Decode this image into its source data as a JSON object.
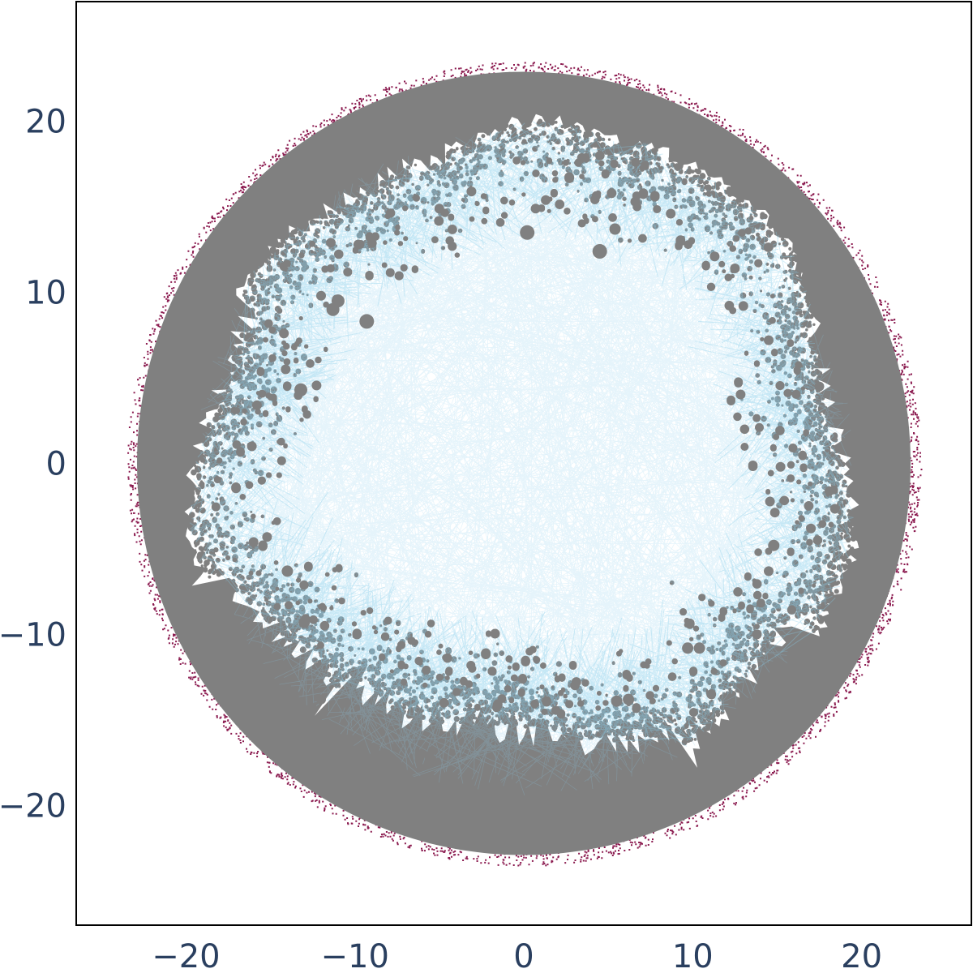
{
  "chart_data": {
    "type": "scatter",
    "title": "",
    "xlabel": "",
    "ylabel": "",
    "xlim": [
      -26.5,
      26.5
    ],
    "ylim": [
      -27,
      27
    ],
    "x_ticks": [
      -20,
      -10,
      0,
      10,
      20
    ],
    "y_ticks": [
      -20,
      -10,
      0,
      10,
      20
    ],
    "x_tick_labels": [
      "−20",
      "−10",
      "0",
      "10",
      "20"
    ],
    "y_tick_labels": [
      "−20",
      "−10",
      "0",
      "10",
      "20"
    ],
    "grid": false,
    "legend": "none",
    "disk_radius": 23.5,
    "layers": [
      {
        "role": "outer boundary nodes",
        "color": "#8b1a4f"
      },
      {
        "role": "edges",
        "color": "#87ceeb"
      },
      {
        "role": "nodes",
        "color": "#808080"
      }
    ],
    "hubs": [
      {
        "x": 0.2,
        "y": 13.5,
        "size": 9
      },
      {
        "x": 4.5,
        "y": 12.4,
        "size": 9
      },
      {
        "x": -9.3,
        "y": 8.3,
        "size": 9
      },
      {
        "x": -13.2,
        "y": 4.3,
        "size": 8
      },
      {
        "x": 5.4,
        "y": 13.7,
        "size": 7
      },
      {
        "x": -11.0,
        "y": 9.5,
        "size": 8
      },
      {
        "x": -11.3,
        "y": 9.0,
        "size": 8
      },
      {
        "x": 9.7,
        "y": -10.8,
        "size": 7
      },
      {
        "x": 10.4,
        "y": -10.8,
        "size": 7
      },
      {
        "x": 6.2,
        "y": -13.8,
        "size": 7
      },
      {
        "x": 5.5,
        "y": -13.9,
        "size": 7
      },
      {
        "x": 13.0,
        "y": 9.2,
        "size": 6
      },
      {
        "x": 14.8,
        "y": -4.8,
        "size": 7
      },
      {
        "x": 14.5,
        "y": -6.3,
        "size": 6
      },
      {
        "x": 15.2,
        "y": -0.2,
        "size": 6
      },
      {
        "x": -14.0,
        "y": -6.3,
        "size": 7
      },
      {
        "x": -13.0,
        "y": -9.3,
        "size": 7
      },
      {
        "x": -15.2,
        "y": -4.3,
        "size": 6
      },
      {
        "x": -9.8,
        "y": 12.8,
        "size": 6
      },
      {
        "x": 1.3,
        "y": 15.4,
        "size": 6
      },
      {
        "x": 0.7,
        "y": 14.9,
        "size": 6
      },
      {
        "x": -5.0,
        "y": 14.9,
        "size": 6
      },
      {
        "x": -3.1,
        "y": 15.9,
        "size": 6
      },
      {
        "x": 5.2,
        "y": 15.8,
        "size": 6
      },
      {
        "x": 6.6,
        "y": 15.3,
        "size": 6
      },
      {
        "x": 8.7,
        "y": 14.6,
        "size": 6
      },
      {
        "x": 11.3,
        "y": 12.1,
        "size": 6
      },
      {
        "x": -12.0,
        "y": 9.8,
        "size": 6
      },
      {
        "x": -14.1,
        "y": 5.5,
        "size": 6
      },
      {
        "x": -14.2,
        "y": 7.6,
        "size": 6
      },
      {
        "x": -15.8,
        "y": 3.4,
        "size": 6
      },
      {
        "x": 14.5,
        "y": 7.2,
        "size": 6
      },
      {
        "x": 12.5,
        "y": 11.4,
        "size": 6
      },
      {
        "x": 17.5,
        "y": 4.5,
        "size": 6
      },
      {
        "x": 17.0,
        "y": -3.8,
        "size": 6
      },
      {
        "x": 13.8,
        "y": -10.0,
        "size": 6
      },
      {
        "x": 11.1,
        "y": -13.5,
        "size": 6
      },
      {
        "x": -12.0,
        "y": -13.8,
        "size": 6
      },
      {
        "x": -10.5,
        "y": -14.0,
        "size": 6
      },
      {
        "x": -5.6,
        "y": -17.1,
        "size": 6
      },
      {
        "x": -16.0,
        "y": -4.6,
        "size": 6
      },
      {
        "x": -16.1,
        "y": 1.0,
        "size": 6
      }
    ]
  }
}
